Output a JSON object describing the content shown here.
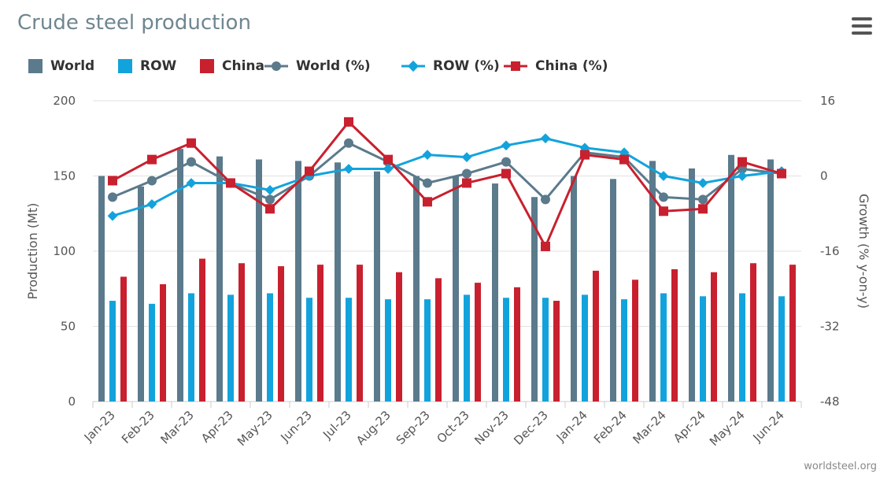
{
  "header": {
    "title": "Crude steel production"
  },
  "menu": {
    "icon": "hamburger-menu-icon"
  },
  "credit": "worldsteel.org",
  "colors": {
    "world": "#5b7a8c",
    "row": "#13a3dc",
    "china": "#c8202f",
    "grid": "#e2e2e2"
  },
  "chart_data": {
    "type": "bar",
    "categories": [
      "Jan-23",
      "Feb-23",
      "Mar-23",
      "Apr-23",
      "May-23",
      "Jun-23",
      "Jul-23",
      "Aug-23",
      "Sep-23",
      "Oct-23",
      "Nov-23",
      "Dec-23",
      "Jan-24",
      "Feb-24",
      "Mar-24",
      "Apr-24",
      "May-24",
      "Jun-24"
    ],
    "series": [
      {
        "name": "World",
        "kind": "bar",
        "axis": "left",
        "values": [
          150,
          143,
          168,
          163,
          161,
          160,
          159,
          153,
          150,
          150,
          145,
          136,
          150,
          148,
          160,
          155,
          164,
          161
        ]
      },
      {
        "name": "ROW",
        "kind": "bar",
        "axis": "left",
        "values": [
          67,
          65,
          72,
          71,
          72,
          69,
          69,
          68,
          68,
          71,
          69,
          69,
          71,
          68,
          72,
          70,
          72,
          70
        ]
      },
      {
        "name": "China",
        "kind": "bar",
        "axis": "left",
        "values": [
          83,
          78,
          95,
          92,
          90,
          91,
          91,
          86,
          82,
          79,
          76,
          67,
          87,
          81,
          88,
          86,
          92,
          91
        ]
      },
      {
        "name": "World (%)",
        "kind": "line",
        "axis": "right",
        "marker": "circle",
        "values": [
          -4.5,
          -1.0,
          3.0,
          -1.5,
          -5.0,
          0.0,
          7.0,
          3.0,
          -1.5,
          0.5,
          3.0,
          -5.0,
          5.0,
          4.0,
          -4.5,
          -5.0,
          1.5,
          0.5
        ]
      },
      {
        "name": "ROW (%)",
        "kind": "line",
        "axis": "right",
        "marker": "diamond",
        "values": [
          -8.5,
          -6.0,
          -1.5,
          -1.5,
          -3.0,
          0.0,
          1.5,
          1.5,
          4.5,
          4.0,
          6.5,
          8.0,
          6.0,
          5.0,
          0.0,
          -1.5,
          0.0,
          1.0
        ]
      },
      {
        "name": "China (%)",
        "kind": "line",
        "axis": "right",
        "marker": "square",
        "values": [
          -1.0,
          3.5,
          7.0,
          -1.5,
          -7.0,
          1.0,
          11.5,
          3.5,
          -5.5,
          -1.5,
          0.5,
          -15.0,
          4.5,
          3.5,
          -7.5,
          -7.0,
          3.0,
          0.5
        ]
      }
    ],
    "xlabel": "",
    "ylabel": "Production (Mt)",
    "y2label": "Growth (% y-on-y)",
    "ylim": [
      0,
      200
    ],
    "y2lim": [
      -48,
      16
    ],
    "yticks": [
      "0",
      "50",
      "100",
      "150",
      "200"
    ],
    "y2ticks": [
      "-48",
      "-32",
      "-16",
      "0",
      "16"
    ],
    "grid": true,
    "legend_position": "top-left"
  }
}
